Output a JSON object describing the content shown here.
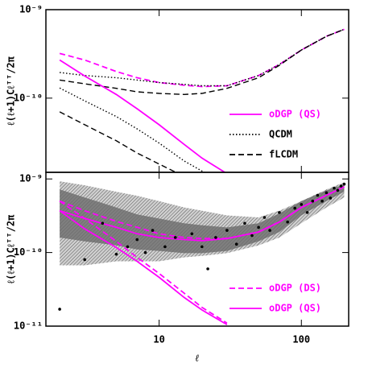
{
  "chart_data": [
    {
      "type": "line",
      "ylabel": "ℓ(ℓ+1)Cℓᵀᵀ/2π",
      "log_x": true,
      "log_y": true,
      "xlim": [
        1.6,
        215
      ],
      "ylim": [
        1.45e-11,
        1e-09
      ],
      "xticks": [
        10,
        100
      ],
      "yticks": [
        {
          "value": 1e-09,
          "label": "10⁻⁹"
        },
        {
          "value": 1e-10,
          "label": "10⁻¹⁰"
        }
      ],
      "legend": "lower right",
      "x": [
        2,
        3,
        5,
        7,
        10,
        15,
        20,
        30,
        50,
        70,
        100,
        150,
        200
      ],
      "series": [
        {
          "color": "#ff00ff",
          "dash": "dashed",
          "values": [
            3.2e-10,
            2.7e-10,
            2e-10,
            1.7e-10,
            1.5e-10,
            1.4e-10,
            1.35e-10,
            1.38e-10,
            1.8e-10,
            2.4e-10,
            3.5e-10,
            5e-10,
            6e-10
          ]
        },
        {
          "color": "#000000",
          "dash": "dotted",
          "values": [
            1.95e-10,
            1.8e-10,
            1.7e-10,
            1.6e-10,
            1.5e-10,
            1.43e-10,
            1.38e-10,
            1.38e-10,
            1.8e-10,
            2.4e-10,
            3.5e-10,
            5e-10,
            6e-10
          ]
        },
        {
          "color": "#000000",
          "dash": "dashed",
          "values": [
            1.6e-10,
            1.45e-10,
            1.29e-10,
            1.18e-10,
            1.13e-10,
            1.1e-10,
            1.13e-10,
            1.29e-10,
            1.7e-10,
            2.35e-10,
            3.5e-10,
            5e-10,
            6e-10
          ]
        },
        {
          "name": "oDGP (QS)",
          "color": "#ff00ff",
          "dash": "solid",
          "values": [
            2.7e-10,
            1.78e-10,
            1.1e-10,
            7.6e-11,
            5e-11,
            3e-11,
            2.1e-11,
            1.4e-11,
            null,
            null,
            null,
            null,
            null
          ]
        },
        {
          "name": "QCDM",
          "color": "#000000",
          "dash": "dotted",
          "values": [
            1.3e-10,
            9.3e-11,
            6.2e-11,
            4.5e-11,
            3.1e-11,
            1.95e-11,
            1.5e-11,
            1.1e-11,
            null,
            null,
            null,
            null,
            null
          ]
        },
        {
          "name": "fLCDM",
          "color": "#000000",
          "dash": "dashed",
          "values": [
            7e-11,
            5e-11,
            3.3e-11,
            2.4e-11,
            1.8e-11,
            1.3e-11,
            null,
            null,
            null,
            null,
            null,
            null,
            null
          ]
        }
      ]
    },
    {
      "type": "line",
      "ylabel": "ℓ(ℓ+1)Cℓᵀᵀ/2π",
      "xlabel": "ℓ",
      "log_x": true,
      "log_y": true,
      "xlim": [
        1.6,
        215
      ],
      "ylim": [
        1e-11,
        1.23e-09
      ],
      "xticks": [
        10,
        100
      ],
      "yticks": [
        {
          "value": 1e-09,
          "label": "10⁻⁹"
        },
        {
          "value": 1e-10,
          "label": "10⁻¹⁰"
        },
        {
          "value": 1e-11,
          "label": "10⁻¹¹"
        }
      ],
      "legend": "lower right",
      "x": [
        2,
        3,
        5,
        7,
        10,
        15,
        20,
        30,
        50,
        70,
        100,
        150,
        200
      ],
      "bands": [
        {
          "color": "#9a9a9a",
          "upper": [
            9.3e-10,
            8.2e-10,
            6.7e-10,
            5.9e-10,
            5e-10,
            4.1e-10,
            3.7e-10,
            3.2e-10,
            3e-10,
            3.7e-10,
            5e-10,
            7.2e-10,
            9e-10
          ],
          "lower": [
            6.7e-11,
            6.7e-11,
            7.6e-11,
            7.6e-11,
            7.6e-11,
            8.6e-11,
            9e-11,
            9.8e-11,
            1.25e-10,
            1.6e-10,
            2.5e-10,
            4.1e-10,
            5.6e-10
          ]
        },
        {
          "color": "#6a6a6a",
          "upper": [
            7.2e-10,
            5.6e-10,
            4.1e-10,
            3.3e-10,
            2.9e-10,
            2.5e-10,
            2.35e-10,
            2.2e-10,
            2.5e-10,
            3.4e-10,
            5e-10,
            7e-10,
            8.4e-10
          ],
          "lower": [
            1.6e-10,
            1.42e-10,
            1.25e-10,
            1.1e-10,
            1.05e-10,
            9.8e-11,
            9.8e-11,
            1.05e-10,
            1.42e-10,
            1.9e-10,
            3.2e-10,
            5e-10,
            6.7e-10
          ]
        }
      ],
      "points": {
        "x": [
          2,
          3,
          4,
          5,
          6,
          7,
          8,
          9,
          11,
          13,
          17,
          20,
          22,
          25,
          30,
          35,
          40,
          45,
          50,
          55,
          60,
          70,
          80,
          90,
          100,
          110,
          120,
          130,
          140,
          150,
          160,
          170,
          180,
          190,
          200
        ],
        "y": [
          1.7e-11,
          8e-11,
          2.5e-10,
          9.5e-11,
          1.2e-10,
          1.5e-10,
          1e-10,
          2e-10,
          1.2e-10,
          1.6e-10,
          1.8e-10,
          1.2e-10,
          6e-11,
          1.6e-10,
          2e-10,
          1.3e-10,
          2.5e-10,
          1.7e-10,
          2.2e-10,
          3e-10,
          2e-10,
          3.5e-10,
          2.6e-10,
          4e-10,
          4.5e-10,
          3.5e-10,
          5e-10,
          6e-10,
          5e-10,
          6.5e-10,
          5.5e-10,
          7.5e-10,
          7e-10,
          8e-10,
          8.5e-10
        ]
      },
      "series": [
        {
          "name": "oDGP (DS)",
          "color": "#ff00ff",
          "dash": "dashed",
          "values": [
            5e-10,
            3.7e-10,
            2.65e-10,
            2.2e-10,
            1.8e-10,
            1.6e-10,
            1.55e-10,
            1.55e-10,
            1.9e-10,
            2.6e-10,
            4.1e-10,
            6e-10,
            7.8e-10
          ]
        },
        {
          "name": "oDGP (QS)",
          "color": "#ff00ff",
          "dash": "solid",
          "values": [
            3.7e-10,
            2.9e-10,
            2.2e-10,
            1.8e-10,
            1.6e-10,
            1.5e-10,
            1.45e-10,
            1.55e-10,
            1.9e-10,
            2.6e-10,
            4.1e-10,
            6e-10,
            7.8e-10
          ]
        },
        {
          "color": "#ff00ff",
          "dash": "solid",
          "values": [
            3.7e-10,
            2.1e-10,
            1.17e-10,
            7.6e-11,
            4.6e-11,
            2.45e-11,
            1.66e-11,
            1.05e-11,
            null,
            null,
            null,
            null,
            null
          ]
        },
        {
          "color": "#ff00ff",
          "dash": "dashed",
          "values": [
            5e-10,
            2.9e-10,
            1.42e-10,
            8.6e-11,
            5.2e-11,
            2.8e-11,
            1.8e-11,
            1.1e-11,
            null,
            null,
            null,
            null,
            null
          ]
        }
      ]
    }
  ]
}
